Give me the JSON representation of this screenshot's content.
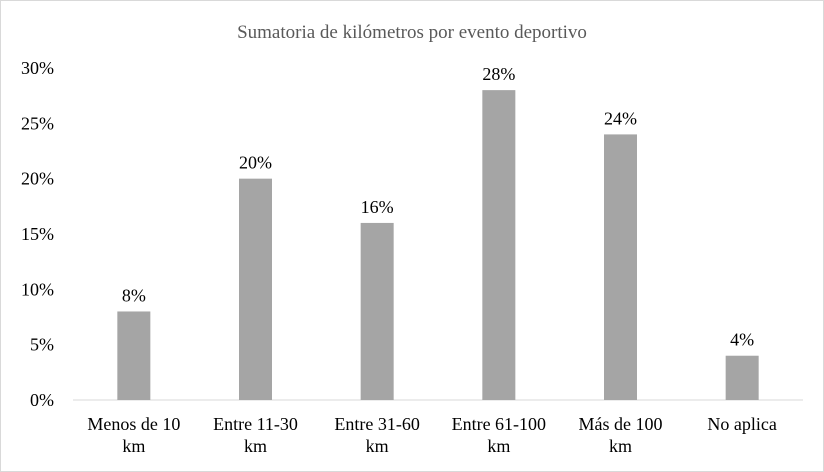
{
  "chart_data": {
    "type": "bar",
    "title": "Sumatoria de kilómetros por evento deportivo",
    "categories": [
      [
        "Menos de 10",
        "km"
      ],
      [
        "Entre 11-30",
        "km"
      ],
      [
        "Entre 31-60",
        "km"
      ],
      [
        "Entre 61-100",
        "km"
      ],
      [
        "Más de 100",
        "km"
      ],
      [
        "No aplica"
      ]
    ],
    "values": [
      8,
      20,
      16,
      28,
      24,
      4
    ],
    "data_labels": [
      "8%",
      "20%",
      "16%",
      "28%",
      "24%",
      "4%"
    ],
    "y_ticks": [
      "0%",
      "5%",
      "10%",
      "15%",
      "20%",
      "25%",
      "30%"
    ],
    "ylim": [
      0,
      30
    ],
    "grid": false,
    "legend": "none",
    "colors": {
      "bar": "#a5a5a5",
      "axis": "#d9d9d9",
      "title": "#595959"
    }
  }
}
